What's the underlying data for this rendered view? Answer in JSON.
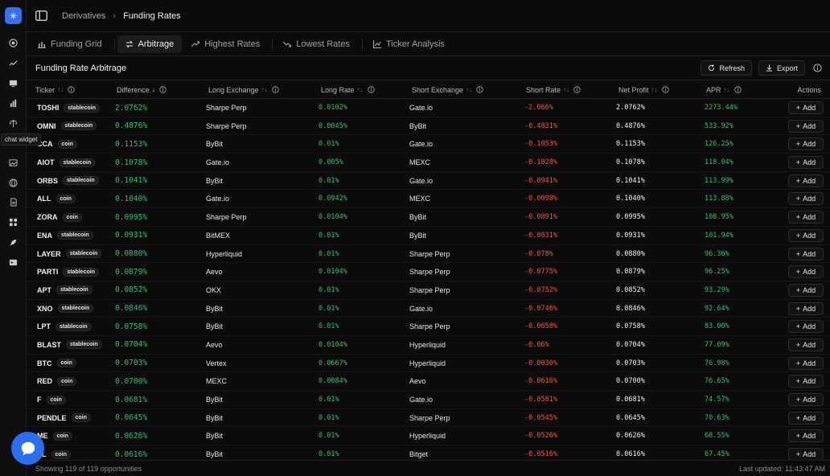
{
  "rail": {
    "tooltip": "chat widget",
    "icons": [
      "logo-icon",
      "globe-icon",
      "trend-icon",
      "monitor-icon",
      "bar-chart-icon",
      "scale-icon",
      "chat-icon",
      "image-icon",
      "network-icon",
      "document-icon",
      "apps-icon",
      "rocket-icon",
      "terminal-icon"
    ]
  },
  "breadcrumb": {
    "parent": "Derivatives",
    "current": "Funding Rates"
  },
  "tabs": [
    {
      "label": "Funding Grid"
    },
    {
      "label": "Arbitrage"
    },
    {
      "label": "Highest Rates"
    },
    {
      "label": "Lowest Rates"
    },
    {
      "label": "Ticker Analysis"
    }
  ],
  "section": {
    "title": "Funding Rate Arbitrage",
    "refresh": "Refresh",
    "export": "Export"
  },
  "columns": {
    "ticker": "Ticker",
    "difference": "Difference",
    "long_exchange": "Long Exchange",
    "long_rate": "Long Rate",
    "short_exchange": "Short Exchange",
    "short_rate": "Short Rate",
    "net_profit": "Net Profit",
    "apr": "APR",
    "actions": "Actions"
  },
  "add_label": "Add",
  "rows": [
    {
      "ticker": "TOSHI",
      "badge": "stablecoin",
      "diff": "2.0762%",
      "long_ex": "Sharpe Perp",
      "long_rate": "0.0102%",
      "short_ex": "Gate.io",
      "short_rate": "-2.066%",
      "net": "2.0762%",
      "apr": "2273.44%"
    },
    {
      "ticker": "OMNI",
      "badge": "stablecoin",
      "diff": "0.4876%",
      "long_ex": "Sharpe Perp",
      "long_rate": "0.0045%",
      "short_ex": "ByBit",
      "short_rate": "-0.4831%",
      "net": "0.4876%",
      "apr": "533.92%"
    },
    {
      "ticker": "CCA",
      "badge": "coin",
      "diff": "0.1153%",
      "long_ex": "ByBit",
      "long_rate": "0.01%",
      "short_ex": "Gate.io",
      "short_rate": "-0.1053%",
      "net": "0.1153%",
      "apr": "126.25%"
    },
    {
      "ticker": "AIOT",
      "badge": "stablecoin",
      "diff": "0.1078%",
      "long_ex": "Gate.io",
      "long_rate": "0.005%",
      "short_ex": "MEXC",
      "short_rate": "-0.1028%",
      "net": "0.1078%",
      "apr": "118.04%"
    },
    {
      "ticker": "ORBS",
      "badge": "stablecoin",
      "diff": "0.1041%",
      "long_ex": "ByBit",
      "long_rate": "0.01%",
      "short_ex": "Gate.io",
      "short_rate": "-0.0941%",
      "net": "0.1041%",
      "apr": "113.99%"
    },
    {
      "ticker": "ALL",
      "badge": "coin",
      "diff": "0.1040%",
      "long_ex": "Gate.io",
      "long_rate": "0.0942%",
      "short_ex": "MEXC",
      "short_rate": "-0.0098%",
      "net": "0.1040%",
      "apr": "113.88%"
    },
    {
      "ticker": "ZORA",
      "badge": "coin",
      "diff": "0.0995%",
      "long_ex": "Sharpe Perp",
      "long_rate": "0.0104%",
      "short_ex": "ByBit",
      "short_rate": "-0.0891%",
      "net": "0.0995%",
      "apr": "108.95%"
    },
    {
      "ticker": "ENA",
      "badge": "stablecoin",
      "diff": "0.0931%",
      "long_ex": "BitMEX",
      "long_rate": "0.01%",
      "short_ex": "ByBit",
      "short_rate": "-0.0831%",
      "net": "0.0931%",
      "apr": "101.94%"
    },
    {
      "ticker": "LAYER",
      "badge": "stablecoin",
      "diff": "0.0880%",
      "long_ex": "Hyperliquid",
      "long_rate": "0.01%",
      "short_ex": "Sharpe Perp",
      "short_rate": "-0.078%",
      "net": "0.0880%",
      "apr": "96.36%"
    },
    {
      "ticker": "PARTI",
      "badge": "stablecoin",
      "diff": "0.0879%",
      "long_ex": "Aevo",
      "long_rate": "0.0104%",
      "short_ex": "Sharpe Perp",
      "short_rate": "-0.0775%",
      "net": "0.0879%",
      "apr": "96.25%"
    },
    {
      "ticker": "APT",
      "badge": "stablecoin",
      "diff": "0.0852%",
      "long_ex": "OKX",
      "long_rate": "0.01%",
      "short_ex": "Sharpe Perp",
      "short_rate": "-0.0752%",
      "net": "0.0852%",
      "apr": "93.29%"
    },
    {
      "ticker": "XNO",
      "badge": "stablecoin",
      "diff": "0.0846%",
      "long_ex": "ByBit",
      "long_rate": "0.01%",
      "short_ex": "Gate.io",
      "short_rate": "-0.0746%",
      "net": "0.0846%",
      "apr": "92.64%"
    },
    {
      "ticker": "LPT",
      "badge": "stablecoin",
      "diff": "0.0758%",
      "long_ex": "ByBit",
      "long_rate": "0.01%",
      "short_ex": "Sharpe Perp",
      "short_rate": "-0.0658%",
      "net": "0.0758%",
      "apr": "83.00%"
    },
    {
      "ticker": "BLAST",
      "badge": "stablecoin",
      "diff": "0.0704%",
      "long_ex": "Aevo",
      "long_rate": "0.0104%",
      "short_ex": "Hyperliquid",
      "short_rate": "-0.06%",
      "net": "0.0704%",
      "apr": "77.09%"
    },
    {
      "ticker": "BTC",
      "badge": "coin",
      "diff": "0.0703%",
      "long_ex": "Vertex",
      "long_rate": "0.0667%",
      "short_ex": "Hyperliquid",
      "short_rate": "-0.0036%",
      "net": "0.0703%",
      "apr": "76.98%"
    },
    {
      "ticker": "RED",
      "badge": "coin",
      "diff": "0.0700%",
      "long_ex": "MEXC",
      "long_rate": "0.0084%",
      "short_ex": "Aevo",
      "short_rate": "-0.0616%",
      "net": "0.0700%",
      "apr": "76.65%"
    },
    {
      "ticker": "F",
      "badge": "coin",
      "diff": "0.0681%",
      "long_ex": "ByBit",
      "long_rate": "0.01%",
      "short_ex": "Gate.io",
      "short_rate": "-0.0581%",
      "net": "0.0681%",
      "apr": "74.57%"
    },
    {
      "ticker": "PENDLE",
      "badge": "coin",
      "diff": "0.0645%",
      "long_ex": "ByBit",
      "long_rate": "0.01%",
      "short_ex": "Sharpe Perp",
      "short_rate": "-0.0545%",
      "net": "0.0645%",
      "apr": "70.63%"
    },
    {
      "ticker": "ME",
      "badge": "coin",
      "diff": "0.0626%",
      "long_ex": "ByBit",
      "long_rate": "0.01%",
      "short_ex": "Hyperliquid",
      "short_rate": "-0.0526%",
      "net": "0.0626%",
      "apr": "68.55%"
    },
    {
      "ticker": "VL",
      "badge": "coin",
      "diff": "0.0616%",
      "long_ex": "ByBit",
      "long_rate": "0.01%",
      "short_ex": "Bitget",
      "short_rate": "-0.0516%",
      "net": "0.0616%",
      "apr": "67.45%"
    }
  ],
  "footer": {
    "count": "Showing 119 of 119 opportunities",
    "updated": "Last updated: 11:43:47 AM"
  },
  "colors": {
    "accent": "#3b6ef5",
    "positive": "#2fbf71",
    "negative": "#f0553d",
    "chat": "#2a6ff0"
  }
}
